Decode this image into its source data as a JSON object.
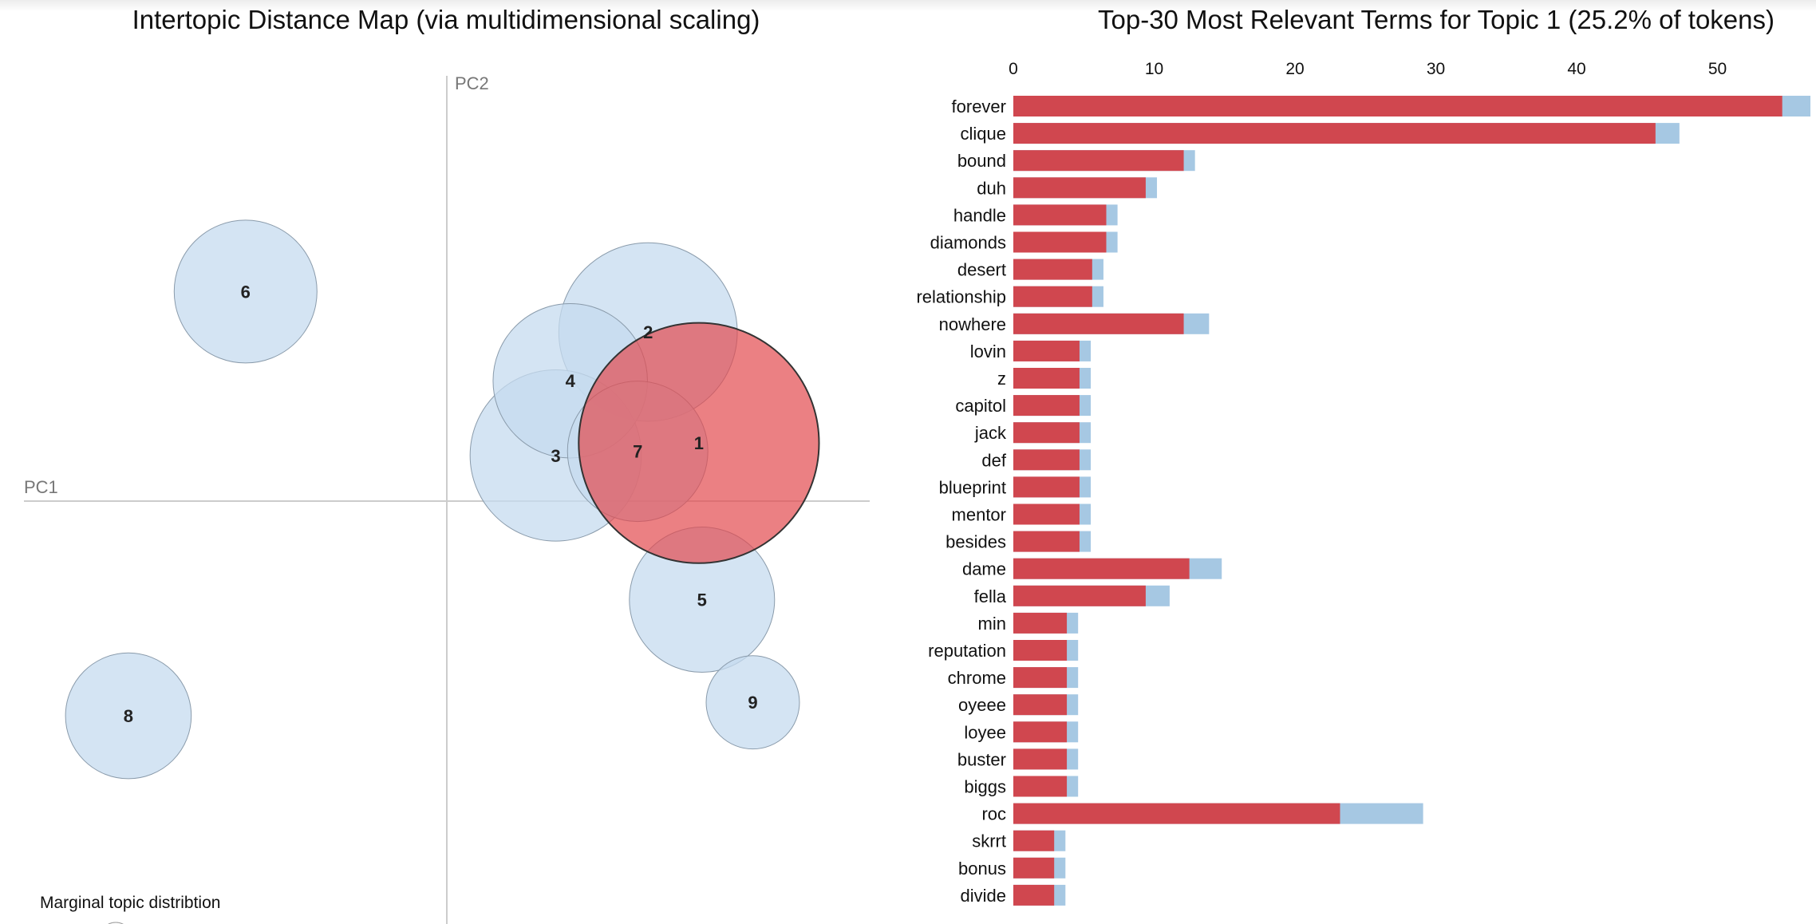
{
  "chart_data": [
    {
      "type": "scatter",
      "title": "Intertopic Distance Map (via multidimensional scaling)",
      "xlabel": "PC1",
      "ylabel": "PC2",
      "selected_topic": "1",
      "legend_text": "Marginal topic distribtion",
      "colors": {
        "bubble": "#c6dbef",
        "bubble_stroke": "#8a9bab",
        "selected": "#e34a4f",
        "selected_stroke": "#333333",
        "axis": "#cccccc"
      },
      "topics": [
        {
          "label": "1",
          "x": 0.243,
          "y": 0.056,
          "size": 25.2
        },
        {
          "label": "2",
          "x": 0.194,
          "y": 0.163,
          "size": 13.9
        },
        {
          "label": "3",
          "x": 0.105,
          "y": 0.044,
          "size": 12.8
        },
        {
          "label": "4",
          "x": 0.119,
          "y": 0.116,
          "size": 10.4
        },
        {
          "label": "5",
          "x": 0.246,
          "y": -0.095,
          "size": 9.2
        },
        {
          "label": "6",
          "x": -0.194,
          "y": 0.202,
          "size": 8.9
        },
        {
          "label": "7",
          "x": 0.184,
          "y": 0.048,
          "size": 8.6
        },
        {
          "label": "8",
          "x": -0.307,
          "y": -0.207,
          "size": 6.9
        },
        {
          "label": "9",
          "x": 0.295,
          "y": -0.194,
          "size": 3.8
        }
      ]
    },
    {
      "type": "bar",
      "title": "Top-30 Most Relevant Terms for Topic 1 (25.2% of tokens)",
      "xlim": [
        0,
        57
      ],
      "x_ticks": [
        "0",
        "10",
        "20",
        "30",
        "40",
        "50"
      ],
      "colors": {
        "estimated": "#d0474f",
        "overall": "#a6c8e3"
      },
      "categories": [
        "forever",
        "clique",
        "bound",
        "duh",
        "handle",
        "diamonds",
        "desert",
        "relationship",
        "nowhere",
        "lovin",
        "z",
        "capitol",
        "jack",
        "def",
        "blueprint",
        "mentor",
        "besides",
        "dame",
        "fella",
        "min",
        "reputation",
        "chrome",
        "oyeee",
        "loyee",
        "buster",
        "biggs",
        "roc",
        "skrrt",
        "bonus",
        "divide"
      ],
      "series": [
        {
          "key": "estimated",
          "values": [
            54.6,
            45.6,
            12.1,
            9.4,
            6.6,
            6.6,
            5.6,
            5.6,
            12.1,
            4.7,
            4.7,
            4.7,
            4.7,
            4.7,
            4.7,
            4.7,
            4.7,
            12.5,
            9.4,
            3.8,
            3.8,
            3.8,
            3.8,
            3.8,
            3.8,
            3.8,
            23.2,
            2.9,
            2.9,
            2.9
          ]
        },
        {
          "key": "overall",
          "values": [
            56.6,
            47.3,
            12.9,
            10.2,
            7.4,
            7.4,
            6.4,
            6.4,
            13.9,
            5.5,
            5.5,
            5.5,
            5.5,
            5.5,
            5.5,
            5.5,
            5.5,
            14.8,
            11.1,
            4.6,
            4.6,
            4.6,
            4.6,
            4.6,
            4.6,
            4.6,
            29.1,
            3.7,
            3.7,
            3.7
          ]
        }
      ]
    }
  ]
}
